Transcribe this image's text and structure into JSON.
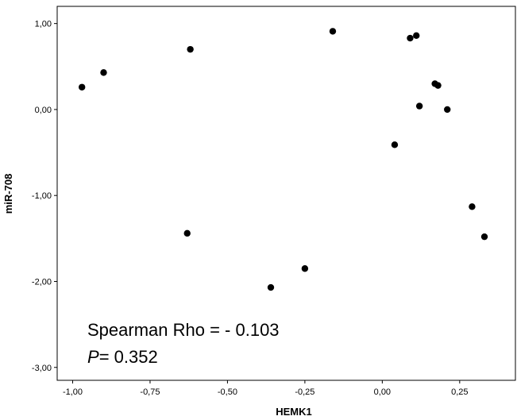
{
  "chart_data": {
    "type": "scatter",
    "title": "",
    "xlabel": "HEMK1",
    "ylabel": "miR-708",
    "xlim": [
      -1.05,
      0.43
    ],
    "ylim": [
      -3.15,
      1.2
    ],
    "x_ticks": [
      -1.0,
      -0.75,
      -0.5,
      -0.25,
      0.0,
      0.25
    ],
    "x_tick_labels": [
      "-1,00",
      "-0,75",
      "-0,50",
      "-0,25",
      "0,00",
      "0,25"
    ],
    "y_ticks": [
      1.0,
      0.0,
      -1.0,
      -2.0,
      -3.0
    ],
    "y_tick_labels": [
      "1,00",
      "0,00",
      "-1,00",
      "-2,00",
      "-3,00"
    ],
    "grid": false,
    "point_color": "#000000",
    "points": [
      {
        "x": -0.97,
        "y": 0.26
      },
      {
        "x": -0.9,
        "y": 0.43
      },
      {
        "x": -0.62,
        "y": 0.7
      },
      {
        "x": -0.63,
        "y": -1.44
      },
      {
        "x": -0.36,
        "y": -2.07
      },
      {
        "x": -0.25,
        "y": -1.85
      },
      {
        "x": -0.16,
        "y": 0.91
      },
      {
        "x": 0.04,
        "y": -0.41
      },
      {
        "x": 0.09,
        "y": 0.83
      },
      {
        "x": 0.11,
        "y": 0.86
      },
      {
        "x": 0.12,
        "y": 0.04
      },
      {
        "x": 0.17,
        "y": 0.3
      },
      {
        "x": 0.18,
        "y": 0.28
      },
      {
        "x": 0.21,
        "y": 0.0
      },
      {
        "x": 0.29,
        "y": -1.13
      },
      {
        "x": 0.33,
        "y": -1.48
      }
    ],
    "annotations": {
      "line1": "Spearman Rho = - 0.103",
      "line2_italic": "P",
      "line2_rest": "= 0.352"
    }
  }
}
